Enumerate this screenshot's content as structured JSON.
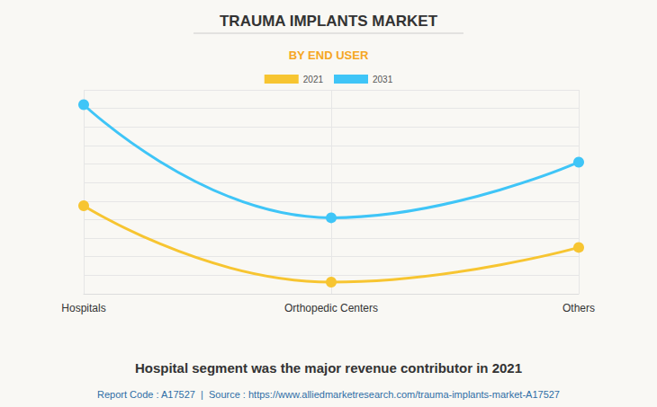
{
  "chart_data": {
    "type": "line",
    "title": "TRAUMA IMPLANTS MARKET",
    "subtitle": "BY END USER",
    "caption": "Hospital segment was the major revenue contributor in 2021",
    "source": "Report Code : A17527  |  Source : https://www.alliedmarketresearch.com/trauma-implants-market-A17527",
    "categories": [
      "Hospitals",
      "Orthopedic Centers",
      "Others"
    ],
    "series": [
      {
        "name": "2021",
        "color": "#f7c531",
        "values": [
          47.5,
          6.3,
          25
        ]
      },
      {
        "name": "2031",
        "color": "#3fc5f7",
        "values": [
          102,
          41,
          71
        ]
      }
    ],
    "ylim": [
      0,
      110
    ],
    "yticks": [
      0,
      10,
      20,
      30,
      40,
      50,
      60,
      70,
      80,
      90,
      100,
      110
    ],
    "grid": true,
    "legend": "top",
    "tick_labels": "x",
    "marker": "circle"
  }
}
